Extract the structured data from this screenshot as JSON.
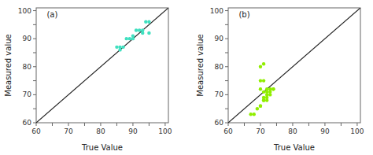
{
  "chart_data": [
    {
      "type": "scatter",
      "annotations": [
        "(a)"
      ],
      "xlabel": "True Value",
      "ylabel": "Measured value",
      "color": "#40E0C0",
      "x": [
        85,
        86,
        86,
        87,
        88,
        89,
        90,
        90,
        91,
        92,
        93,
        93,
        94,
        95,
        95
      ],
      "values": [
        87,
        86,
        87,
        87,
        90,
        90,
        90,
        91,
        93,
        93,
        93,
        92,
        96,
        96,
        92
      ],
      "xlim": [
        60,
        101
      ],
      "ylim": [
        60,
        101
      ],
      "xticks": [
        60,
        {
          "value": 65,
          "label": null
        },
        70,
        {
          "value": 75,
          "label": null
        },
        80,
        {
          "value": 85,
          "label": null
        },
        90,
        {
          "value": 95,
          "label": null
        },
        100
      ],
      "yticks": [
        60,
        {
          "value": 65,
          "label": null
        },
        70,
        {
          "value": 75,
          "label": null
        },
        80,
        {
          "value": 85,
          "label": null
        },
        90,
        {
          "value": 95,
          "label": null
        },
        100
      ]
    },
    {
      "type": "scatter",
      "annotations": [
        "(b)"
      ],
      "xlabel": "True Value",
      "ylabel": "Measured value",
      "color": "#90EE00",
      "x": [
        67,
        68,
        69,
        70,
        70,
        71,
        71,
        71,
        72,
        72,
        72,
        73,
        73,
        73,
        74,
        70,
        71,
        72,
        70,
        71,
        72,
        74,
        70,
        71
      ],
      "values": [
        63,
        63,
        65,
        66,
        66,
        68,
        68,
        69,
        68,
        69,
        70,
        70,
        72,
        71,
        72,
        75,
        75,
        71,
        72,
        71,
        72,
        72,
        80,
        81
      ],
      "xlim": [
        60,
        101
      ],
      "ylim": [
        60,
        101
      ],
      "xticks": [
        60,
        {
          "value": 65,
          "label": null
        },
        70,
        {
          "value": 75,
          "label": null
        },
        80,
        {
          "value": 85,
          "label": null
        },
        90,
        {
          "value": 95,
          "label": null
        },
        100
      ],
      "yticks": [
        60,
        {
          "value": 65,
          "label": null
        },
        70,
        {
          "value": 75,
          "label": null
        },
        80,
        {
          "value": 85,
          "label": null
        },
        90,
        {
          "value": 95,
          "label": null
        },
        100
      ]
    }
  ]
}
